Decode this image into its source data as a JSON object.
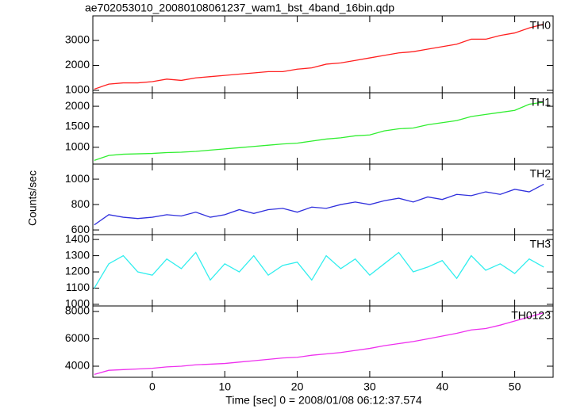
{
  "chart_data": {
    "type": "line",
    "title": "ae702053010_20080108061237_wam1_bst_4band_16bin.qdp",
    "xlabel": "Time [sec] 0 = 2008/01/08 06:12:37.574",
    "ylabel": "Counts/sec",
    "x": [
      -8,
      -6,
      -4,
      -2,
      0,
      2,
      4,
      6,
      8,
      10,
      12,
      14,
      16,
      18,
      20,
      22,
      24,
      26,
      28,
      30,
      32,
      34,
      36,
      38,
      40,
      42,
      44,
      46,
      48,
      50,
      52,
      54
    ],
    "xlim": [
      -8.2,
      55.3
    ],
    "xticks": [
      0,
      10,
      20,
      30,
      40,
      50
    ],
    "series": [
      {
        "name": "TH0",
        "color": "#ff2020",
        "ylim": [
          905,
          3985
        ],
        "yticks": [
          1000,
          2000,
          3000
        ],
        "values": [
          1050,
          1250,
          1300,
          1300,
          1350,
          1450,
          1400,
          1500,
          1550,
          1600,
          1650,
          1700,
          1750,
          1750,
          1850,
          1900,
          2050,
          2100,
          2200,
          2300,
          2400,
          2500,
          2550,
          2650,
          2750,
          2850,
          3050,
          3050,
          3200,
          3300,
          3500,
          3650
        ]
      },
      {
        "name": "TH1",
        "color": "#30ee30",
        "ylim": [
          590,
          2330
        ],
        "yticks": [
          1000,
          1500,
          2000
        ],
        "values": [
          680,
          800,
          830,
          840,
          850,
          870,
          880,
          900,
          930,
          960,
          990,
          1020,
          1050,
          1080,
          1100,
          1150,
          1200,
          1230,
          1280,
          1300,
          1400,
          1450,
          1470,
          1550,
          1600,
          1650,
          1750,
          1800,
          1850,
          1900,
          2050,
          2100
        ]
      },
      {
        "name": "TH2",
        "color": "#3030dd",
        "ylim": [
          563,
          1119
        ],
        "yticks": [
          600,
          800,
          1000
        ],
        "values": [
          640,
          720,
          700,
          690,
          700,
          720,
          710,
          740,
          700,
          720,
          760,
          730,
          760,
          770,
          740,
          780,
          770,
          800,
          820,
          800,
          830,
          850,
          820,
          860,
          840,
          880,
          870,
          900,
          880,
          920,
          900,
          960
        ]
      },
      {
        "name": "TH3",
        "color": "#30eeee",
        "ylim": [
          990,
          1430
        ],
        "yticks": [
          1000,
          1100,
          1200,
          1300,
          1400
        ],
        "values": [
          1100,
          1250,
          1300,
          1200,
          1180,
          1280,
          1220,
          1320,
          1150,
          1250,
          1200,
          1300,
          1180,
          1240,
          1260,
          1150,
          1300,
          1220,
          1280,
          1180,
          1250,
          1320,
          1200,
          1230,
          1270,
          1160,
          1300,
          1210,
          1250,
          1190,
          1280,
          1230
        ]
      },
      {
        "name": "TH0123",
        "color": "#ee30ee",
        "ylim": [
          3190,
          8400
        ],
        "yticks": [
          4000,
          6000,
          8000
        ],
        "values": [
          3400,
          3700,
          3750,
          3800,
          3850,
          3950,
          4000,
          4100,
          4150,
          4200,
          4300,
          4400,
          4500,
          4600,
          4650,
          4800,
          4900,
          5000,
          5150,
          5300,
          5500,
          5650,
          5800,
          6000,
          6200,
          6400,
          6650,
          6750,
          7000,
          7300,
          7600,
          7900
        ]
      }
    ]
  }
}
